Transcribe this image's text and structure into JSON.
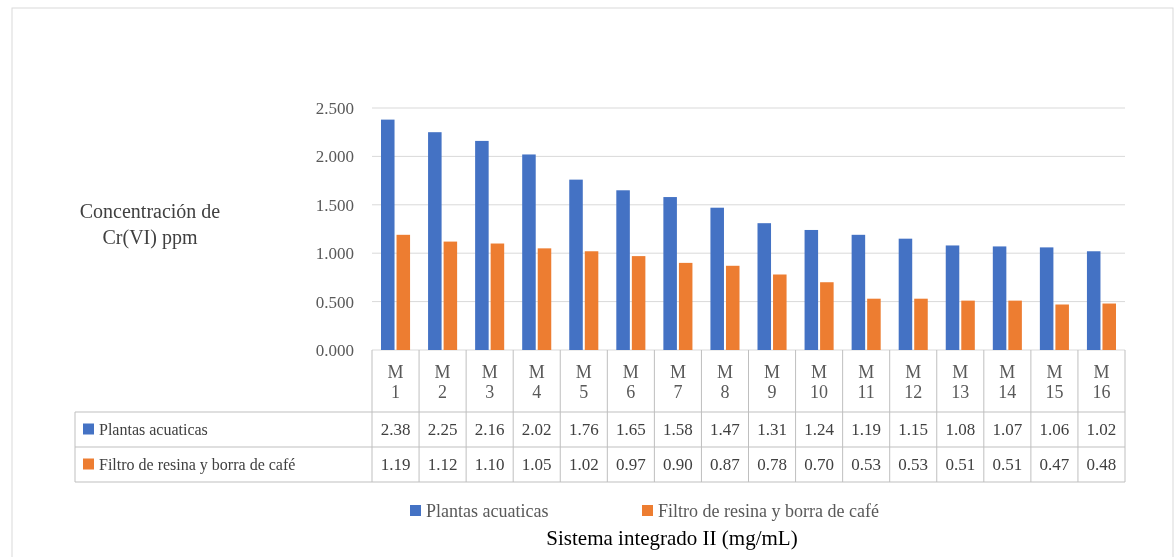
{
  "chart_data": {
    "type": "bar",
    "annotations": [
      "Sistema integrado II (mg/mL)"
    ],
    "ylabel": "Concentración de Cr(VI) ppm",
    "categories": [
      "M 1",
      "M 2",
      "M 3",
      "M 4",
      "M 5",
      "M 6",
      "M 7",
      "M 8",
      "M 9",
      "M 10",
      "M 11",
      "M 12",
      "M 13",
      "M 14",
      "M 15",
      "M 16"
    ],
    "series": [
      {
        "name": "Plantas acuaticas",
        "color": "#4472c4",
        "values": [
          2.38,
          2.25,
          2.16,
          2.02,
          1.76,
          1.65,
          1.58,
          1.47,
          1.31,
          1.24,
          1.19,
          1.15,
          1.08,
          1.07,
          1.06,
          1.02
        ],
        "value_labels": [
          "2.38",
          "2.25",
          "2.16",
          "2.02",
          "1.76",
          "1.65",
          "1.58",
          "1.47",
          "1.31",
          "1.24",
          "1.19",
          "1.15",
          "1.08",
          "1.07",
          "1.06",
          "1.02"
        ]
      },
      {
        "name": "Filtro de resina y borra de café",
        "color": "#ed7d31",
        "values": [
          1.19,
          1.12,
          1.1,
          1.05,
          1.02,
          0.97,
          0.9,
          0.87,
          0.78,
          0.7,
          0.53,
          0.53,
          0.51,
          0.51,
          0.47,
          0.48
        ],
        "value_labels": [
          "1.19",
          "1.12",
          "1.10",
          "1.05",
          "1.02",
          "0.97",
          "0.90",
          "0.87",
          "0.78",
          "0.70",
          "0.53",
          "0.53",
          "0.51",
          "0.51",
          "0.47",
          "0.48"
        ]
      }
    ],
    "ylim": [
      0,
      2.5
    ],
    "yticks": [
      {
        "value": 0,
        "label": "0.000"
      },
      {
        "value": 0.5,
        "label": "0.500"
      },
      {
        "value": 1,
        "label": "1.000"
      },
      {
        "value": 1.5,
        "label": "1.500"
      },
      {
        "value": 2,
        "label": "2.000"
      },
      {
        "value": 2.5,
        "label": "2.500"
      }
    ],
    "grid": "y",
    "legend": "bottom"
  }
}
